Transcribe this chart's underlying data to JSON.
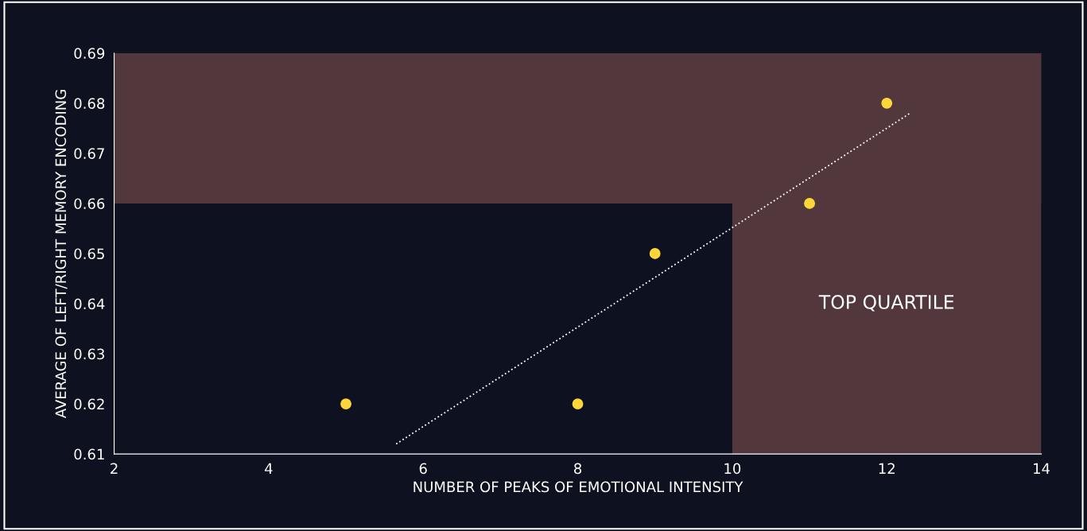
{
  "chart_data": {
    "type": "scatter",
    "xlabel": "NUMBER OF PEAKS OF EMOTIONAL INTENSITY",
    "ylabel": "AVERAGE OF LEFT/RIGHT MEMORY ENCODING",
    "x": [
      5,
      8,
      9,
      11,
      12
    ],
    "series": [
      {
        "color": "#fdd73a",
        "values": [
          0.62,
          0.62,
          0.65,
          0.66,
          0.68
        ],
        "marker": "circle"
      },
      {
        "type": "line",
        "color": "#ffffff",
        "x": [
          5.65,
          12.3
        ],
        "values": [
          0.612,
          0.678
        ],
        "line_style": "dotted",
        "marker": "none"
      }
    ],
    "xlim": [
      2,
      14
    ],
    "xticks": [
      2,
      4,
      6,
      8,
      10,
      12,
      14
    ],
    "ylim": [
      0.61,
      0.69
    ],
    "yticks": [
      0.61,
      0.62,
      0.63,
      0.64,
      0.65,
      0.66,
      0.67,
      0.68,
      0.69
    ],
    "bands": [
      {
        "axis": "y",
        "from": 0.66,
        "to": 0.69,
        "color": "#52373d"
      },
      {
        "axis": "x",
        "from": 10,
        "to": 14,
        "color": "#52373d",
        "label": "TOP QUARTILE"
      }
    ],
    "grid": false,
    "legend": false
  }
}
